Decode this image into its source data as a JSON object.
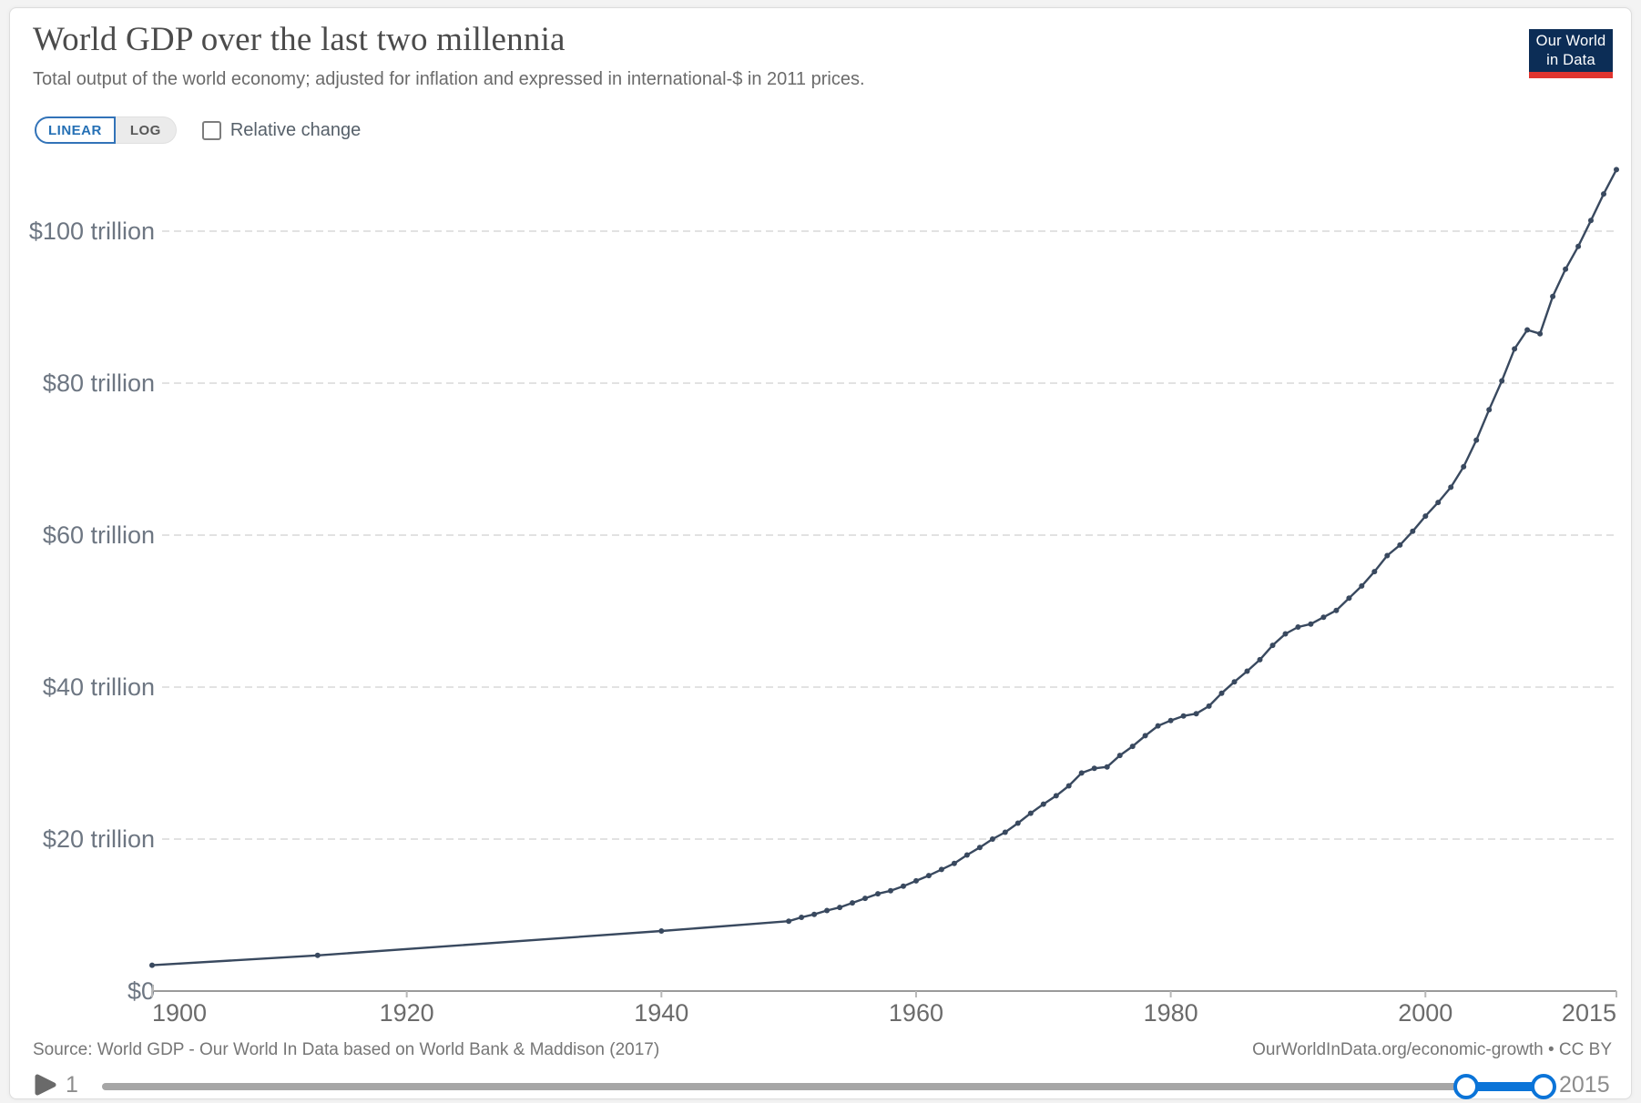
{
  "header": {
    "title": "World GDP over the last two millennia",
    "subtitle": "Total output of the world economy; adjusted for inflation and expressed in international-$ in 2011 prices."
  },
  "logo": {
    "line1": "Our World",
    "line2": "in Data",
    "bg_color": "#0c2d56",
    "bar_color": "#e0342f"
  },
  "controls": {
    "linear_label": "LINEAR",
    "log_label": "LOG",
    "active_scale": "LINEAR",
    "relative_change_label": "Relative change",
    "relative_change_checked": false,
    "accent_color": "#2570b5"
  },
  "footer": {
    "source": "Source: World GDP - Our World In Data based on World Bank & Maddison (2017)",
    "attribution": "OurWorldInData.org/economic-growth • CC BY"
  },
  "timeline": {
    "start_label": "1",
    "end_label": "2015",
    "range_start_year": 1,
    "range_end_year": 2015,
    "selected_start_year": 1900,
    "selected_end_year": 2015,
    "slider_color": "#0b74d8"
  },
  "chart_data": {
    "type": "line",
    "title": "World GDP over the last two millennia",
    "unit": "trillion international-$ (2011 prices)",
    "xlabel": "",
    "ylabel": "",
    "xlim": [
      1900,
      2015
    ],
    "ylim": [
      0,
      110
    ],
    "grid": {
      "horizontal": true,
      "style": "dashed"
    },
    "x_ticks": [
      1900,
      1920,
      1940,
      1960,
      1980,
      2000,
      2015
    ],
    "y_ticks": [
      {
        "value": 0,
        "label": "$0"
      },
      {
        "value": 20,
        "label": "$20 trillion"
      },
      {
        "value": 40,
        "label": "$40 trillion"
      },
      {
        "value": 60,
        "label": "$60 trillion"
      },
      {
        "value": 80,
        "label": "$80 trillion"
      },
      {
        "value": 100,
        "label": "$100 trillion"
      }
    ],
    "series": [
      {
        "name": "World",
        "color": "#39495f",
        "points": [
          [
            1900,
            3.4
          ],
          [
            1913,
            4.7
          ],
          [
            1940,
            7.9
          ],
          [
            1950,
            9.2
          ],
          [
            1951,
            9.7
          ],
          [
            1952,
            10.1
          ],
          [
            1953,
            10.6
          ],
          [
            1954,
            11.0
          ],
          [
            1955,
            11.6
          ],
          [
            1956,
            12.2
          ],
          [
            1957,
            12.8
          ],
          [
            1958,
            13.2
          ],
          [
            1959,
            13.8
          ],
          [
            1960,
            14.5
          ],
          [
            1961,
            15.2
          ],
          [
            1962,
            16.0
          ],
          [
            1963,
            16.8
          ],
          [
            1964,
            17.9
          ],
          [
            1965,
            18.9
          ],
          [
            1966,
            20.0
          ],
          [
            1967,
            20.9
          ],
          [
            1968,
            22.1
          ],
          [
            1969,
            23.4
          ],
          [
            1970,
            24.6
          ],
          [
            1971,
            25.7
          ],
          [
            1972,
            27.0
          ],
          [
            1973,
            28.7
          ],
          [
            1974,
            29.3
          ],
          [
            1975,
            29.5
          ],
          [
            1976,
            31.0
          ],
          [
            1977,
            32.2
          ],
          [
            1978,
            33.6
          ],
          [
            1979,
            34.9
          ],
          [
            1980,
            35.6
          ],
          [
            1981,
            36.2
          ],
          [
            1982,
            36.5
          ],
          [
            1983,
            37.5
          ],
          [
            1984,
            39.2
          ],
          [
            1985,
            40.7
          ],
          [
            1986,
            42.1
          ],
          [
            1987,
            43.6
          ],
          [
            1988,
            45.5
          ],
          [
            1989,
            47.0
          ],
          [
            1990,
            47.9
          ],
          [
            1991,
            48.3
          ],
          [
            1992,
            49.2
          ],
          [
            1993,
            50.1
          ],
          [
            1994,
            51.7
          ],
          [
            1995,
            53.3
          ],
          [
            1996,
            55.2
          ],
          [
            1997,
            57.3
          ],
          [
            1998,
            58.7
          ],
          [
            1999,
            60.5
          ],
          [
            2000,
            62.5
          ],
          [
            2001,
            64.3
          ],
          [
            2002,
            66.3
          ],
          [
            2003,
            69.0
          ],
          [
            2004,
            72.5
          ],
          [
            2005,
            76.5
          ],
          [
            2006,
            80.3
          ],
          [
            2007,
            84.5
          ],
          [
            2008,
            87.0
          ],
          [
            2009,
            86.5
          ],
          [
            2010,
            91.4
          ],
          [
            2011,
            95.0
          ],
          [
            2012,
            98.0
          ],
          [
            2013,
            101.4
          ],
          [
            2014,
            104.9
          ],
          [
            2015,
            108.1
          ]
        ]
      }
    ]
  }
}
